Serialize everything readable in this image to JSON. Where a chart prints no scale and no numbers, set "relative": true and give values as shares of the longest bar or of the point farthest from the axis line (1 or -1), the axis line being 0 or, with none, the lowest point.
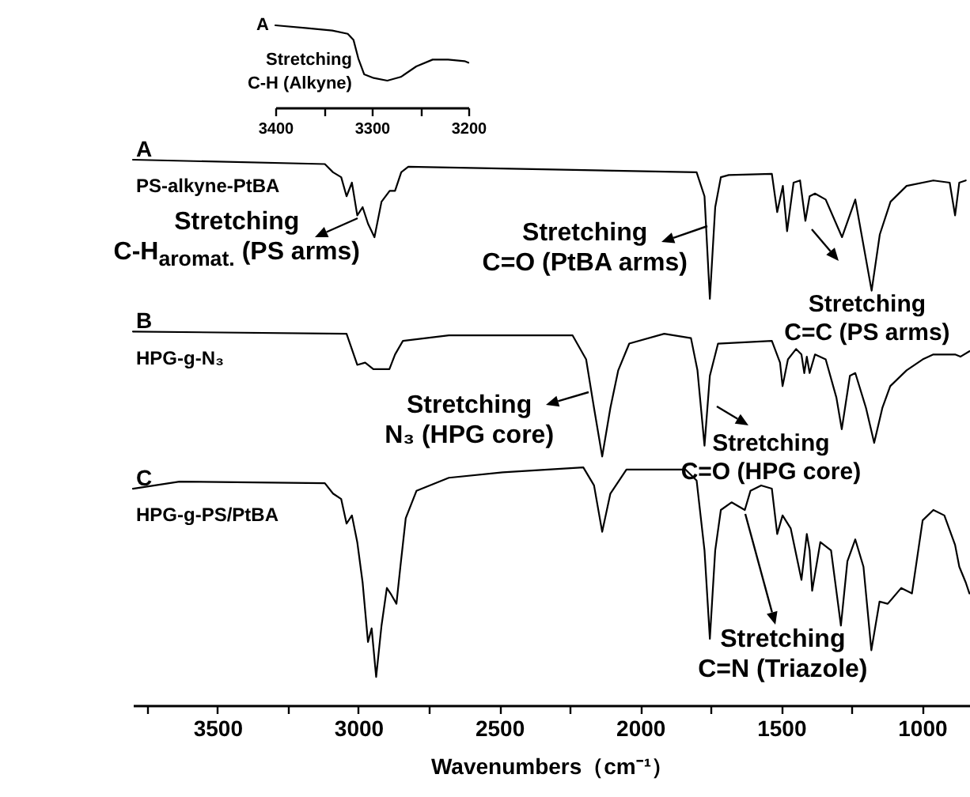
{
  "chart_data": [
    {
      "type": "line",
      "relative": true,
      "xlim": [
        3400,
        3200
      ],
      "xticks": [
        3400,
        {
          "value": 3350,
          "label": null
        },
        3300,
        {
          "value": 3250,
          "label": null
        },
        3200
      ],
      "series": [
        {
          "name": "A",
          "color": "#000000",
          "x": [
            3400,
            3369,
            3341,
            3325,
            3319,
            3314,
            3308,
            3298,
            3284,
            3270,
            3254,
            3237,
            3221,
            3204,
            3200
          ],
          "values": [
            1.0,
            0.968,
            0.936,
            0.897,
            0.821,
            0.596,
            0.404,
            0.359,
            0.327,
            0.372,
            0.5,
            0.583,
            0.583,
            0.564,
            0.545
          ]
        }
      ],
      "annotations": [
        {
          "text": "Stretching\nC-H (Alkyne)",
          "x": 3314,
          "y": 0.596
        }
      ]
    },
    {
      "type": "line",
      "relative": true,
      "xlim": [
        3800,
        830
      ],
      "xlabel": "Wavenumbers（cm⁻¹）",
      "xticks": [
        {
          "value": 3750,
          "label": null
        },
        3500,
        {
          "value": 3250,
          "label": null
        },
        3000,
        {
          "value": 2750,
          "label": null
        },
        2500,
        {
          "value": 2250,
          "label": null
        },
        2000,
        {
          "value": 1750,
          "label": null
        },
        1500,
        {
          "value": 1250,
          "label": null
        },
        1000
      ],
      "series": [
        {
          "name": "A",
          "color": "#000000",
          "x": [
            3800,
            3119,
            3090,
            3061,
            3042,
            3023,
            3004,
            2985,
            2966,
            2943,
            2918,
            2889,
            2870,
            2848,
            2823,
            1800,
            1772,
            1753,
            1734,
            1714,
            1686,
            1533,
            1514,
            1494,
            1479,
            1456,
            1433,
            1414,
            1399,
            1380,
            1342,
            1284,
            1237,
            1179,
            1150,
            1112,
            1055,
            960,
            902,
            883,
            868,
            845
          ],
          "values": [
            1.0,
            0.992,
            0.977,
            0.968,
            0.933,
            0.958,
            0.898,
            0.913,
            0.883,
            0.858,
            0.923,
            0.943,
            0.943,
            0.977,
            0.987,
            0.977,
            0.933,
            0.745,
            0.913,
            0.968,
            0.972,
            0.974,
            0.904,
            0.952,
            0.869,
            0.958,
            0.962,
            0.888,
            0.933,
            0.938,
            0.927,
            0.858,
            0.927,
            0.76,
            0.863,
            0.923,
            0.952,
            0.962,
            0.958,
            0.898,
            0.958,
            0.962
          ]
        },
        {
          "name": "B",
          "color": "#000000",
          "x": [
            3800,
            3042,
            3004,
            2976,
            2947,
            2890,
            2870,
            2842,
            2679,
            2240,
            2192,
            2164,
            2135,
            2106,
            2078,
            2039,
            1915,
            1820,
            1797,
            1772,
            1753,
            1724,
            1533,
            1504,
            1495,
            1476,
            1447,
            1428,
            1418,
            1409,
            1399,
            1380,
            1342,
            1304,
            1285,
            1256,
            1237,
            1199,
            1170,
            1141,
            1113,
            1055,
            998,
            960,
            883,
            864,
            832
          ],
          "values": [
            0.685,
            0.681,
            0.624,
            0.628,
            0.616,
            0.616,
            0.643,
            0.668,
            0.678,
            0.678,
            0.634,
            0.545,
            0.456,
            0.545,
            0.614,
            0.663,
            0.681,
            0.673,
            0.614,
            0.476,
            0.604,
            0.663,
            0.668,
            0.628,
            0.585,
            0.634,
            0.653,
            0.643,
            0.609,
            0.639,
            0.609,
            0.643,
            0.634,
            0.564,
            0.506,
            0.604,
            0.609,
            0.545,
            0.481,
            0.545,
            0.585,
            0.614,
            0.634,
            0.643,
            0.643,
            0.639,
            0.649
          ]
        },
        {
          "name": "C",
          "color": "#000000",
          "x": [
            3800,
            3635,
            3119,
            3090,
            3061,
            3042,
            3023,
            3004,
            2985,
            2966,
            2953,
            2937,
            2918,
            2899,
            2886,
            2865,
            2851,
            2832,
            2794,
            2679,
            2488,
            2202,
            2164,
            2135,
            2106,
            2049,
            1839,
            1800,
            1772,
            1753,
            1734,
            1714,
            1676,
            1629,
            1609,
            1571,
            1533,
            1514,
            1495,
            1466,
            1428,
            1409,
            1399,
            1390,
            1361,
            1323,
            1288,
            1265,
            1237,
            1208,
            1180,
            1151,
            1122,
            1074,
            1036,
            998,
            960,
            921,
            883,
            868,
            845,
            832
          ],
          "values": [
            0.397,
            0.41,
            0.407,
            0.388,
            0.378,
            0.333,
            0.348,
            0.299,
            0.225,
            0.116,
            0.141,
            0.052,
            0.146,
            0.215,
            0.205,
            0.186,
            0.254,
            0.343,
            0.393,
            0.417,
            0.427,
            0.436,
            0.403,
            0.318,
            0.388,
            0.432,
            0.432,
            0.412,
            0.284,
            0.122,
            0.284,
            0.358,
            0.372,
            0.358,
            0.393,
            0.403,
            0.397,
            0.314,
            0.348,
            0.324,
            0.23,
            0.314,
            0.284,
            0.21,
            0.299,
            0.284,
            0.146,
            0.264,
            0.304,
            0.254,
            0.101,
            0.19,
            0.186,
            0.215,
            0.205,
            0.339,
            0.358,
            0.348,
            0.294,
            0.254,
            0.225,
            0.205
          ]
        }
      ],
      "annotations": [
        {
          "text": "PS-alkyne-PtBA",
          "x": 3800,
          "y": 1.0
        },
        {
          "text": "Stretching\nC-H$_{aromat.}$ (PS arms)",
          "x": 2943,
          "y": 0.858
        },
        {
          "text": "Stretching\nC=O (PtBA arms)",
          "x": 1753,
          "y": 0.745
        },
        {
          "text": "Stretching\nC=C (PS arms)",
          "x": 1414,
          "y": 0.888
        },
        {
          "text": "HPG-g-N₃",
          "x": 3800,
          "y": 0.685
        },
        {
          "text": "Stretching\nN₃ (HPG core)",
          "x": 2135,
          "y": 0.456
        },
        {
          "text": "Stretching\nC=O (HPG core)",
          "x": 1772,
          "y": 0.476
        },
        {
          "text": "HPG-g-PS/PtBA",
          "x": 3800,
          "y": 0.397
        },
        {
          "text": "Stretching\nC=N (Triazole)",
          "x": 1629,
          "y": 0.358
        }
      ]
    }
  ]
}
